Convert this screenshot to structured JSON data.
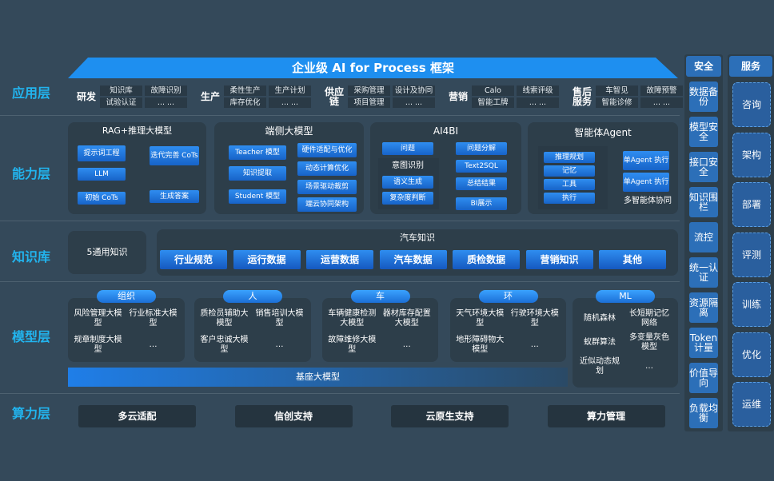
{
  "title": "企业级 AI for Process 框架",
  "layers": [
    "应用层",
    "能力层",
    "知识库",
    "模型层",
    "算力层"
  ],
  "app": [
    {
      "name": "研发",
      "items": [
        "知识库",
        "故障识别",
        "试验认证",
        "... ..."
      ]
    },
    {
      "name": "生产",
      "items": [
        "柔性生产",
        "生产计划",
        "库存优化",
        "... ..."
      ]
    },
    {
      "name": "供应链",
      "items": [
        "采购管理",
        "设计及协同",
        "项目管理",
        "... ..."
      ]
    },
    {
      "name": "营销",
      "items": [
        "Calo",
        "线索评级",
        "智能工牌",
        "... ..."
      ]
    },
    {
      "name": "售后服务",
      "items": [
        "车智见",
        "故障预警",
        "智能诊修",
        "... ..."
      ]
    }
  ],
  "capability": {
    "rag": {
      "title": "RAG+推理大模型",
      "nodes": [
        "提示词工程",
        "LLM",
        "初始 CoTs",
        "迭代完善 CoTs",
        "生成答案"
      ]
    },
    "edge": {
      "title": "端侧大模型",
      "left": [
        "Teacher 模型",
        "知识提取",
        "Student 模型"
      ],
      "right": [
        "硬件适配与优化",
        "动态计算优化",
        "场景驱动裁剪",
        "端云协同架构"
      ]
    },
    "ai4bi": {
      "title": "AI4BI",
      "left": [
        "问题",
        "意图识别",
        "语义生成",
        "复杂度判断"
      ],
      "right": [
        "问题分解",
        "Text2SQL",
        "总结结果",
        "BI展示"
      ]
    },
    "agent": {
      "title": "智能体Agent",
      "items": [
        "推理规划",
        "记忆",
        "工具",
        "执行"
      ],
      "agents": [
        "单Agent 执行",
        "单Agent 执行"
      ],
      "caption": "多智能体协同"
    }
  },
  "knowledge": {
    "general": "5通用知识",
    "title": "汽车知识",
    "items": [
      "行业规范",
      "运行数据",
      "运营数据",
      "汽车数据",
      "质检数据",
      "营销知识",
      "其他"
    ]
  },
  "models": {
    "groups": [
      {
        "name": "组织",
        "items": [
          "风险管理大模型",
          "行业标准大模型",
          "规章制度大模型",
          "…"
        ]
      },
      {
        "name": "人",
        "items": [
          "质检员辅助大模型",
          "销售培训大模型",
          "客户忠诚大模型",
          "…"
        ]
      },
      {
        "name": "车",
        "items": [
          "车辆健康检测大模型",
          "器材库存配置大模型",
          "故障维修大模型",
          "…"
        ]
      },
      {
        "name": "环",
        "items": [
          "天气环境大模型",
          "行驶环境大模型",
          "地形障碍物大模型",
          "…"
        ]
      },
      {
        "name": "ML",
        "items": [
          "随机森林",
          "长短期记忆网络",
          "蚁群算法",
          "多变量灰色模型",
          "近似动态规划",
          "…"
        ]
      }
    ],
    "base": "基座大模型"
  },
  "compute": [
    "多云适配",
    "信创支持",
    "云原生支持",
    "算力管理"
  ],
  "security": {
    "title": "安全",
    "items": [
      "数据备份",
      "模型安全",
      "接口安全",
      "知识围栏",
      "流控",
      "统一认证",
      "资源隔离",
      "Token计量",
      "价值导向",
      "负载均衡"
    ]
  },
  "service": {
    "title": "服务",
    "items": [
      "咨询",
      "架构",
      "部署",
      "评测",
      "训练",
      "优化",
      "运维"
    ]
  }
}
